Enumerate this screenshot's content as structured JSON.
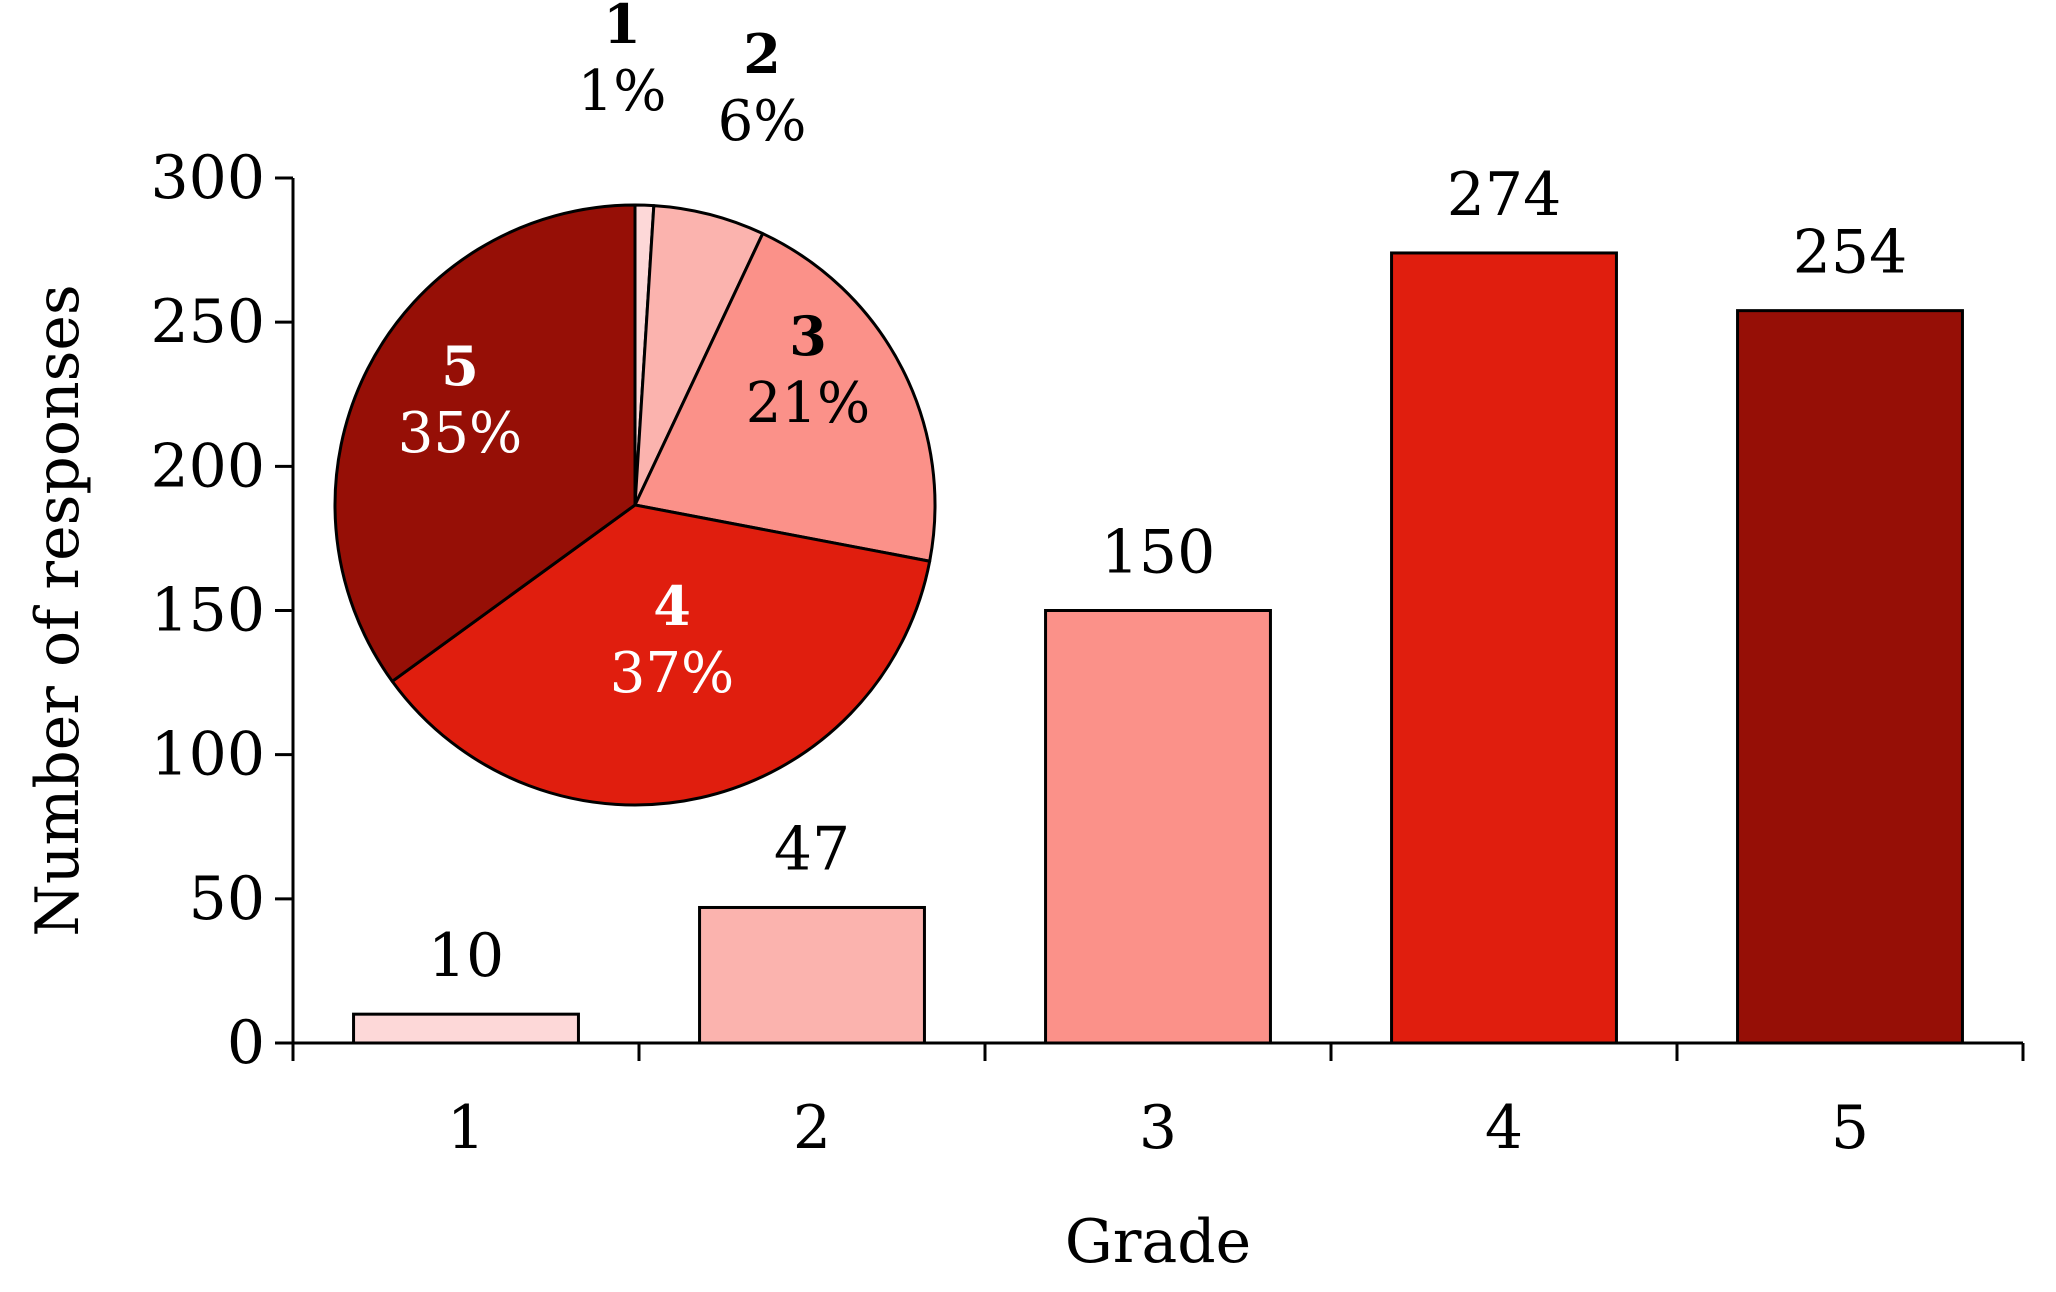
{
  "chart_data": [
    {
      "type": "bar",
      "xlabel": "Grade",
      "ylabel": "Number of responses",
      "categories": [
        "1",
        "2",
        "3",
        "4",
        "5"
      ],
      "values": [
        10,
        47,
        150,
        274,
        254
      ],
      "data_labels": [
        "10",
        "47",
        "150",
        "274",
        "254"
      ],
      "ylim": [
        0,
        300
      ],
      "yticks": [
        0,
        50,
        100,
        150,
        200,
        250,
        300
      ],
      "ytick_labels": [
        "0",
        "50",
        "100",
        "150",
        "200",
        "250",
        "300"
      ],
      "colors": [
        "#fdd8d8",
        "#fbb3ae",
        "#fb9189",
        "#e01e0e",
        "#960f06"
      ],
      "grid": false,
      "legend": "none"
    },
    {
      "type": "pie",
      "categories": [
        "1",
        "2",
        "3",
        "4",
        "5"
      ],
      "values": [
        1,
        6,
        21,
        37,
        35
      ],
      "percent_labels": [
        "1%",
        "6%",
        "21%",
        "37%",
        "35%"
      ],
      "colors": [
        "#fdd8d8",
        "#fbb3ae",
        "#fb9189",
        "#e01e0e",
        "#960f06"
      ],
      "label_colors": [
        "#000000",
        "#000000",
        "#000000",
        "#ffffff",
        "#ffffff"
      ],
      "start": "top",
      "direction": "clockwise"
    }
  ]
}
